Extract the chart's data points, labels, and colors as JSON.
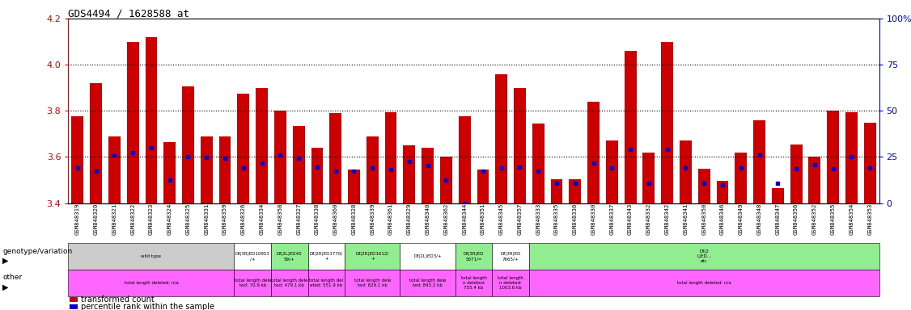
{
  "title": "GDS4494 / 1628588_at",
  "ylim": [
    3.4,
    4.2
  ],
  "yticks_left": [
    3.4,
    3.6,
    3.8,
    4.0,
    4.2
  ],
  "hlines": [
    3.6,
    3.8,
    4.0
  ],
  "samples": [
    "GSM848319",
    "GSM848320",
    "GSM848321",
    "GSM848322",
    "GSM848323",
    "GSM848324",
    "GSM848325",
    "GSM848331",
    "GSM848359",
    "GSM848326",
    "GSM848334",
    "GSM848358",
    "GSM848327",
    "GSM848338",
    "GSM848360",
    "GSM848328",
    "GSM848339",
    "GSM848361",
    "GSM848329",
    "GSM848340",
    "GSM848362",
    "GSM848344",
    "GSM848351",
    "GSM848345",
    "GSM848357",
    "GSM848333",
    "GSM848335",
    "GSM848336",
    "GSM848330",
    "GSM848337",
    "GSM848343",
    "GSM848332",
    "GSM848342",
    "GSM848341",
    "GSM848350",
    "GSM848346",
    "GSM848349",
    "GSM848348",
    "GSM848347",
    "GSM848356",
    "GSM848352",
    "GSM848355",
    "GSM848354",
    "GSM848353"
  ],
  "bar_heights": [
    3.775,
    3.92,
    3.69,
    4.1,
    4.12,
    3.665,
    3.905,
    3.69,
    3.69,
    3.875,
    3.9,
    3.8,
    3.735,
    3.64,
    3.79,
    3.545,
    3.69,
    3.795,
    3.65,
    3.64,
    3.6,
    3.775,
    3.545,
    3.96,
    3.9,
    3.745,
    3.505,
    3.505,
    3.84,
    3.67,
    4.06,
    3.62,
    4.1,
    3.67,
    3.55,
    3.495,
    3.62,
    3.76,
    3.465,
    3.655,
    3.6,
    3.8,
    3.795,
    3.75
  ],
  "percentile_vals": [
    3.553,
    3.537,
    3.61,
    3.618,
    3.641,
    3.5,
    3.601,
    3.597,
    3.596,
    3.554,
    3.575,
    3.607,
    3.596,
    3.555,
    3.537,
    3.54,
    3.553,
    3.546,
    3.581,
    3.563,
    3.5,
    3.4,
    3.54,
    3.553,
    3.555,
    3.54,
    3.487,
    3.487,
    3.575,
    3.553,
    3.634,
    3.487,
    3.634,
    3.553,
    3.487,
    3.48,
    3.553,
    3.609,
    3.487,
    3.548,
    3.565,
    3.548,
    3.6,
    3.553
  ],
  "genotype_regions": [
    [
      0,
      8,
      "#cccccc",
      "wild type"
    ],
    [
      9,
      10,
      "#ffffff",
      "Df(3R)ED10953\n/+"
    ],
    [
      11,
      12,
      "#90EE90",
      "Df(2L)ED45\n59/+"
    ],
    [
      13,
      14,
      "#ffffff",
      "Df(2R)ED1770/\n+"
    ],
    [
      15,
      17,
      "#90EE90",
      "Df(2R)ED1612/\n+"
    ],
    [
      18,
      20,
      "#ffffff",
      "Df(2L)ED3/+"
    ],
    [
      21,
      22,
      "#90EE90",
      "Df(3R)ED\n5071/="
    ],
    [
      23,
      24,
      "#ffffff",
      "Df(3R)ED\n7665/+"
    ],
    [
      25,
      43,
      "#90EE90",
      "Df(2\nL)ED...\netc"
    ]
  ],
  "other_regions": [
    [
      0,
      8,
      "#FF66FF",
      "total length deleted: n/a"
    ],
    [
      9,
      10,
      "#FF66FF",
      "total length dele\nted: 70.9 kb"
    ],
    [
      11,
      12,
      "#FF66FF",
      "total length dele\nted: 479.1 kb"
    ],
    [
      13,
      14,
      "#FF66FF",
      "total length del\neted: 551.9 kb"
    ],
    [
      15,
      17,
      "#FF66FF",
      "total length dele\nted: 829.1 kb"
    ],
    [
      18,
      20,
      "#FF66FF",
      "total length dele\nted: 843.2 kb"
    ],
    [
      21,
      22,
      "#FF66FF",
      "total length\nn deleted:\n755.4 kb"
    ],
    [
      23,
      24,
      "#FF66FF",
      "total length\nn deleted:\n1003.6 kb"
    ],
    [
      25,
      43,
      "#FF66FF",
      "total length deleted: n/a"
    ]
  ],
  "background_color": "#ffffff",
  "bar_color": "#cc0000",
  "percentile_color": "#0000cc",
  "left_axis_color": "#cc0000",
  "right_axis_color": "#0000cc",
  "right_tick_labels": [
    "0",
    "25",
    "50",
    "75",
    "100%"
  ],
  "right_tick_positions": [
    3.4,
    3.6,
    3.8,
    4.0,
    4.2
  ]
}
